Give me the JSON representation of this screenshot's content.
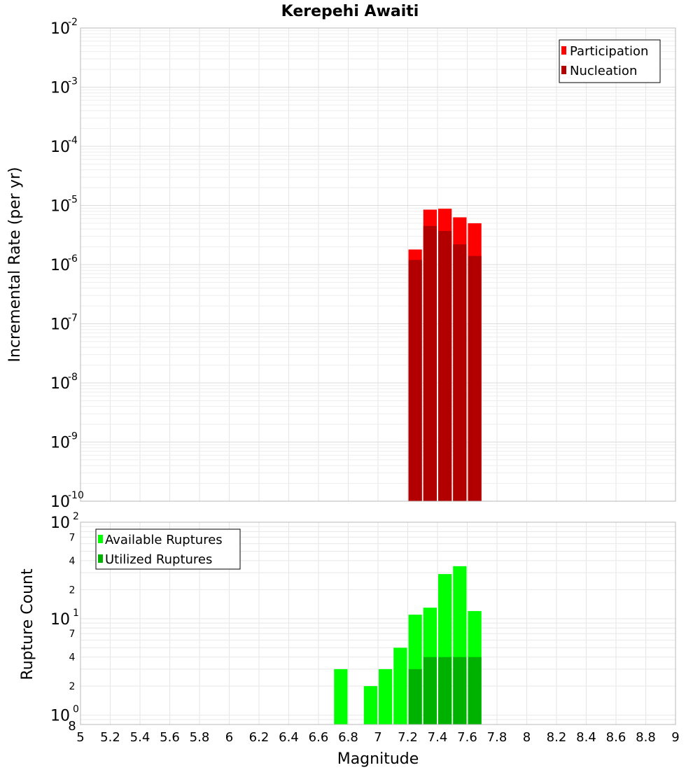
{
  "chart_data": [
    {
      "type": "bar",
      "title": "Kerepehi Awaiti",
      "ylabel": "Incremental Rate (per yr)",
      "xlabel": "",
      "yscale": "log",
      "ylim": [
        1e-10,
        0.01
      ],
      "xlim": [
        5,
        9
      ],
      "y_ticks": [
        {
          "base": "10",
          "exp": "-10",
          "value": 1e-10
        },
        {
          "base": "10",
          "exp": "-9",
          "value": 1e-09
        },
        {
          "base": "10",
          "exp": "-8",
          "value": 1e-08
        },
        {
          "base": "10",
          "exp": "-7",
          "value": 1e-07
        },
        {
          "base": "10",
          "exp": "-6",
          "value": 1e-06
        },
        {
          "base": "10",
          "exp": "-5",
          "value": 1e-05
        },
        {
          "base": "10",
          "exp": "-4",
          "value": 0.0001
        },
        {
          "base": "10",
          "exp": "-3",
          "value": 0.001
        },
        {
          "base": "10",
          "exp": "-2",
          "value": 0.01
        }
      ],
      "legend": {
        "position": "top-right",
        "entries": [
          {
            "label": "Participation",
            "color": "#ff0000"
          },
          {
            "label": "Nucleation",
            "color": "#b20000"
          }
        ]
      },
      "bin_width": 0.1,
      "x": [
        7.25,
        7.35,
        7.45,
        7.55,
        7.65
      ],
      "series": [
        {
          "name": "Participation",
          "color": "#ff0000",
          "values": [
            1.8e-06,
            8.5e-06,
            8.8e-06,
            6.3e-06,
            5e-06
          ]
        },
        {
          "name": "Nucleation",
          "color": "#b20000",
          "values": [
            1.2e-06,
            4.5e-06,
            3.7e-06,
            2.2e-06,
            1.4e-06
          ]
        }
      ]
    },
    {
      "type": "bar",
      "title": "",
      "ylabel": "Rupture Count",
      "xlabel": "Magnitude",
      "yscale": "log",
      "ylim": [
        0.8,
        100
      ],
      "xlim": [
        5,
        9
      ],
      "x_ticks": [
        "5",
        "5.2",
        "5.4",
        "5.6",
        "5.8",
        "6",
        "6.2",
        "6.4",
        "6.6",
        "6.8",
        "7",
        "7.2",
        "7.4",
        "7.6",
        "7.8",
        "8",
        "8.2",
        "8.4",
        "8.6",
        "8.8",
        "9"
      ],
      "y_major_ticks": [
        {
          "base": "10",
          "exp": "0",
          "value": 1
        },
        {
          "base": "10",
          "exp": "1",
          "value": 10
        },
        {
          "base": "10",
          "exp": "2",
          "value": 100
        }
      ],
      "y_minor_ticks": [
        {
          "label": "8",
          "value": 0.8
        },
        {
          "label": "2",
          "value": 2
        },
        {
          "label": "4",
          "value": 4
        },
        {
          "label": "7",
          "value": 7
        },
        {
          "label": "2",
          "value": 20
        },
        {
          "label": "4",
          "value": 40
        },
        {
          "label": "7",
          "value": 70
        }
      ],
      "legend": {
        "position": "top-left",
        "entries": [
          {
            "label": "Available Ruptures",
            "color": "#00ff00"
          },
          {
            "label": "Utilized Ruptures",
            "color": "#00b200"
          }
        ]
      },
      "bin_width": 0.1,
      "x": [
        6.75,
        6.85,
        6.95,
        7.05,
        7.15,
        7.25,
        7.35,
        7.45,
        7.55,
        7.65
      ],
      "series": [
        {
          "name": "Available Ruptures",
          "color": "#00ff00",
          "values": [
            3,
            0,
            2,
            3,
            5,
            11,
            13,
            29,
            35,
            12
          ]
        },
        {
          "name": "Utilized Ruptures",
          "color": "#00b200",
          "values": [
            0,
            0,
            0,
            0,
            0,
            3,
            4,
            4,
            4,
            4
          ]
        }
      ]
    }
  ]
}
